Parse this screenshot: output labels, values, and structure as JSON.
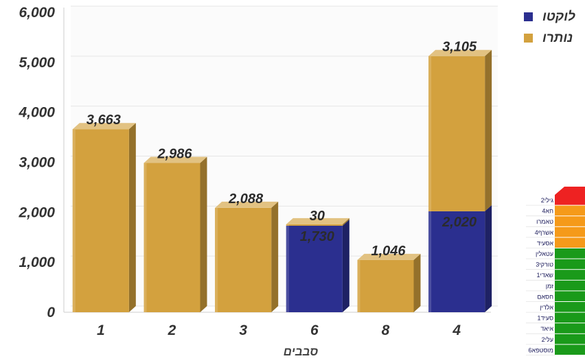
{
  "chart_data": {
    "type": "bar",
    "stacked": true,
    "three_d": true,
    "categories": [
      "1",
      "2",
      "3",
      "6",
      "8",
      "4"
    ],
    "series": [
      {
        "name": "לוקטו",
        "color": "#2b2f8f",
        "values": [
          0,
          0,
          0,
          1730,
          0,
          2020
        ]
      },
      {
        "name": "נותרו",
        "color": "#d3a13e",
        "values": [
          3663,
          2986,
          2088,
          30,
          1046,
          3105
        ]
      }
    ],
    "data_labels": [
      {
        "category": "1",
        "series": "נותרו",
        "text": "3,663"
      },
      {
        "category": "2",
        "series": "נותרו",
        "text": "2,986"
      },
      {
        "category": "3",
        "series": "נותרו",
        "text": "2,088"
      },
      {
        "category": "6",
        "series": "נותרו",
        "text": "30"
      },
      {
        "category": "6",
        "series": "לוקטו",
        "text": "1,730"
      },
      {
        "category": "8",
        "series": "נותרו",
        "text": "1,046"
      },
      {
        "category": "4",
        "series": "נותרו",
        "text": "3,105"
      },
      {
        "category": "4",
        "series": "לוקטו",
        "text": "2,020"
      }
    ],
    "xlabel": "סבבים",
    "ylabel": "",
    "ylim": [
      0,
      6000
    ],
    "yticks": [
      0,
      1000,
      2000,
      3000,
      4000,
      5000,
      6000
    ],
    "ytick_labels": [
      "0",
      "1,000",
      "2,000",
      "3,000",
      "4,000",
      "5,000",
      "6,000"
    ],
    "grid": true,
    "legend_position": "top-right"
  },
  "side_panel": {
    "items": [
      {
        "label": "2גילי",
        "status_color": "#ee2222"
      },
      {
        "label": "4חא",
        "status_color": "#f59a1a"
      },
      {
        "label": "טאמרו",
        "status_color": "#f59a1a"
      },
      {
        "label": "4אשרף",
        "status_color": "#f59a1a"
      },
      {
        "label": "אסעיד",
        "status_color": "#f59a1a"
      },
      {
        "label": "עטאלין",
        "status_color": "#1a9a1a"
      },
      {
        "label": "3טורקי",
        "status_color": "#1a9a1a"
      },
      {
        "label": "1שאדי",
        "status_color": "#1a9a1a"
      },
      {
        "label": "זמן",
        "status_color": "#1a9a1a"
      },
      {
        "label": "חסאם",
        "status_color": "#1a9a1a"
      },
      {
        "label": "אלדין",
        "status_color": "#1a9a1a"
      },
      {
        "label": "1סעיד",
        "status_color": "#1a9a1a"
      },
      {
        "label": "איאד",
        "status_color": "#1a9a1a"
      },
      {
        "label": "2עלי",
        "status_color": "#1a9a1a"
      },
      {
        "label": "6מוסטפא",
        "status_color": "#1a9a1a"
      }
    ]
  }
}
